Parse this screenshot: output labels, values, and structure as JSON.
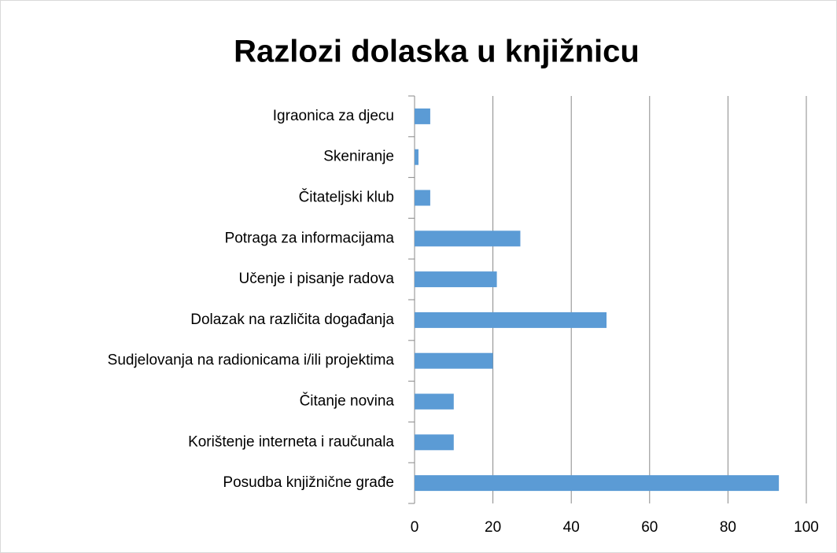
{
  "chart_data": {
    "type": "bar",
    "orientation": "horizontal",
    "title": "Razlozi dolaska u knjižnicu",
    "categories": [
      "Igraonica za djecu",
      "Skeniranje",
      "Čitateljski klub",
      "Potraga za informacijama",
      "Učenje i pisanje radova",
      "Dolazak na različita događanja",
      "Sudjelovanja na radionicama i/ili projektima",
      "Čitanje novina",
      "Korištenje interneta i raučunala",
      "Posudba knjižnične građe"
    ],
    "values": [
      4,
      1,
      4,
      27,
      21,
      49,
      20,
      10,
      10,
      93
    ],
    "color": "#5b9bd5",
    "xlim": [
      0,
      100
    ],
    "xticks": [
      0,
      20,
      40,
      60,
      80,
      100
    ],
    "grid": true
  }
}
